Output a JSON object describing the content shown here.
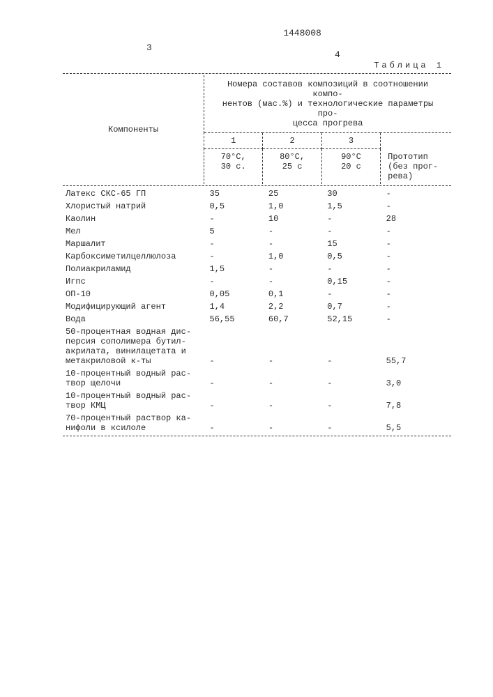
{
  "doc_number": "1448008",
  "page_left": "3",
  "page_right": "4",
  "caption": "Таблица 1",
  "header_col_label": "Компоненты",
  "header_span_text": "Номера составов композиций в соотношении компо-\nнентов (мас.%) и технологические параметры про-\nцесса прогрева",
  "col_nums": [
    "1",
    "2",
    "3"
  ],
  "col_conds": [
    "70°С,\n30 с.",
    "80°С,\n25 с",
    "90°С\n20 с"
  ],
  "col4_label": "Прототип\n(без прог-\nрева)",
  "rows": [
    {
      "label": "Латекс СКС-65 ГП",
      "v": [
        "35",
        "25",
        "30",
        "-"
      ]
    },
    {
      "label": "Хлористый натрий",
      "v": [
        "0,5",
        "1,0",
        "1,5",
        "-"
      ]
    },
    {
      "label": "Каолин",
      "v": [
        "-",
        "10",
        "-",
        "28"
      ]
    },
    {
      "label": "Мел",
      "v": [
        "5",
        "-",
        "-",
        "-"
      ]
    },
    {
      "label": "Маршалит",
      "v": [
        "-",
        "-",
        "15",
        "-"
      ]
    },
    {
      "label": "Карбоксиметилцеллюлоза",
      "v": [
        "-",
        "1,0",
        "0,5",
        "-"
      ]
    },
    {
      "label": "Полиакриламид",
      "v": [
        "1,5",
        "-",
        "-",
        "-"
      ]
    },
    {
      "label": "Игпс",
      "v": [
        "-",
        "-",
        "0,15",
        "-"
      ]
    },
    {
      "label": "ОП-10",
      "v": [
        "0,05",
        "0,1",
        "-",
        "-"
      ]
    },
    {
      "label": "Модифицирующий агент",
      "v": [
        "1,4",
        "2,2",
        "0,7",
        "-"
      ]
    },
    {
      "label": "Вода",
      "v": [
        "56,55",
        "60,7",
        "52,15",
        "-"
      ]
    },
    {
      "label": "50-процентная водная дис-\nперсия сополимера бутил-\nакрилата, винилацетата и\nметакриловой к-ты",
      "v": [
        "-",
        "-",
        "-",
        "55,7"
      ]
    },
    {
      "label": "10-процентный водный рас-\nтвор щелочи",
      "v": [
        "-",
        "-",
        "-",
        "3,0"
      ]
    },
    {
      "label": "10-процентный водный рас-\nтвор КМЦ",
      "v": [
        "-",
        "-",
        "-",
        "7,8"
      ]
    },
    {
      "label": "70-процентный раствор ка-\nнифоли в ксилоле",
      "v": [
        "-",
        "-",
        "-",
        "5,5"
      ]
    }
  ]
}
